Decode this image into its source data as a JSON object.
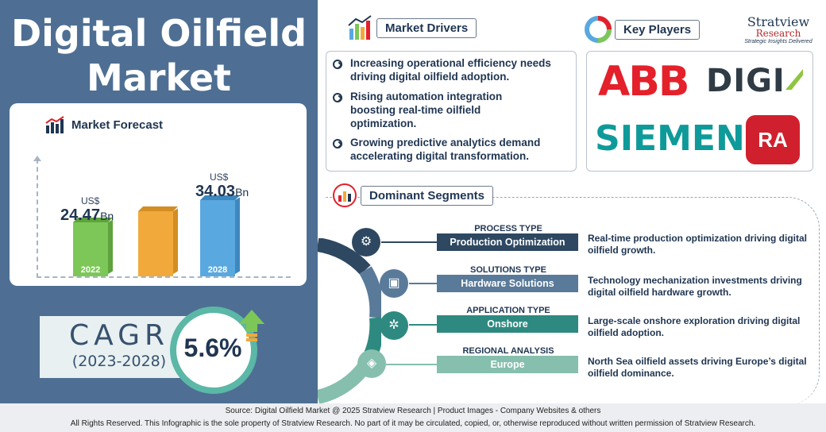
{
  "title": "Digital Oilfield Market",
  "forecast": {
    "heading": "Market Forecast",
    "bars": [
      {
        "year": "2022",
        "currency": "US$",
        "value": "24.47",
        "unit": "Bn",
        "color": "#7cc758",
        "side": "#5ea33d"
      },
      {
        "year": "",
        "currency": "",
        "value": "",
        "unit": "",
        "color": "#f2a93b",
        "side": "#d38d22"
      },
      {
        "year": "2028",
        "currency": "US$",
        "value": "34.03",
        "unit": "Bn",
        "color": "#5aa8e0",
        "side": "#3d88bf"
      }
    ]
  },
  "cagr": {
    "label": "CAGR",
    "years": "(2023-2028)",
    "value": "5.6%"
  },
  "drivers": {
    "heading": "Market Drivers",
    "items": [
      "Increasing operational efficiency needs driving digital oilfield adoption.",
      "Rising automation integration boosting real-time oilfield optimization.",
      "Growing predictive analytics demand accelerating digital transformation."
    ]
  },
  "players": {
    "heading": "Key Players",
    "logos": {
      "abb": "ABB",
      "digi": "DIGI",
      "siemens": "SIEMENS",
      "ra": "RA"
    }
  },
  "brand": {
    "name": "Stratview",
    "sub": "Research",
    "tagline": "Strategic Insights Delivered"
  },
  "segments": {
    "heading": "Dominant Segments",
    "items": [
      {
        "type": "PROCESS TYPE",
        "name": "Production Optimization",
        "desc": "Real-time production optimization driving digital oilfield growth.",
        "color": "#2e4862",
        "icon": "factory-icon",
        "glyph": "⚙"
      },
      {
        "type": "SOLUTIONS TYPE",
        "name": "Hardware Solutions",
        "desc": "Technology mechanization investments driving digital oilfield hardware growth.",
        "color": "#5a7a99",
        "icon": "hardware-icon",
        "glyph": "▣"
      },
      {
        "type": "APPLICATION TYPE",
        "name": "Onshore",
        "desc": "Large-scale onshore exploration driving digital oilfield adoption.",
        "color": "#2e8a80",
        "icon": "onshore-icon",
        "glyph": "✲"
      },
      {
        "type": "REGIONAL ANALYSIS",
        "name": "Europe",
        "desc": "North Sea oilfield assets driving Europe’s digital oilfield dominance.",
        "color": "#86bfae",
        "icon": "europe-map-icon",
        "glyph": "◈"
      }
    ]
  },
  "footer": {
    "source": "Source:  Digital Oilfield Market @ 2025 Stratview Research | Product Images  - Company Websites & others",
    "rights": "All Rights Reserved. This Infographic is the sole property of Stratview Research. No part of it may be circulated, copied, or, otherwise reproduced without written permission of Stratview Research."
  }
}
